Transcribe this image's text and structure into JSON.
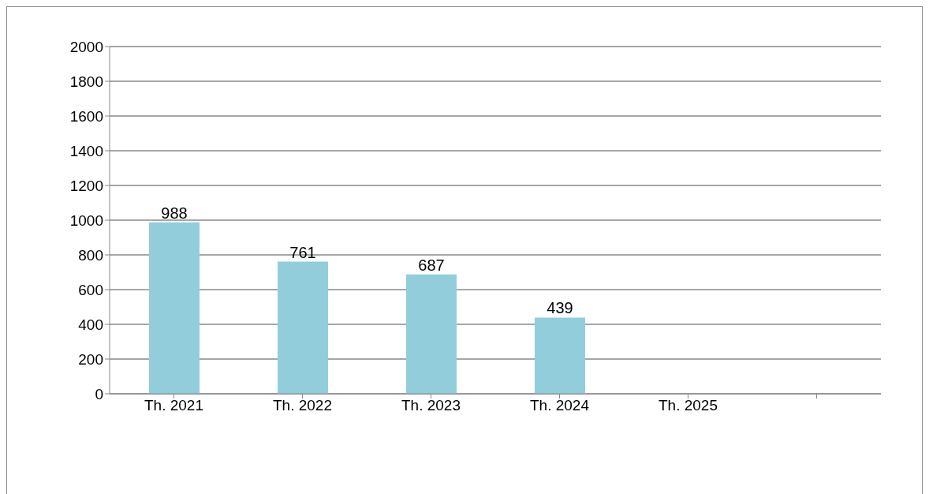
{
  "chart_data": {
    "type": "bar",
    "categories": [
      "Th. 2021",
      "Th. 2022",
      "Th. 2023",
      "Th. 2024",
      "Th. 2025",
      null
    ],
    "values": [
      988,
      761,
      687,
      439,
      null,
      null
    ],
    "color": "#92cddc",
    "ylim": [
      0,
      2000
    ],
    "yticks": [
      0,
      200,
      400,
      600,
      800,
      1000,
      1200,
      1400,
      1600,
      1800,
      2000
    ],
    "grid": "y",
    "data_labels": true
  }
}
